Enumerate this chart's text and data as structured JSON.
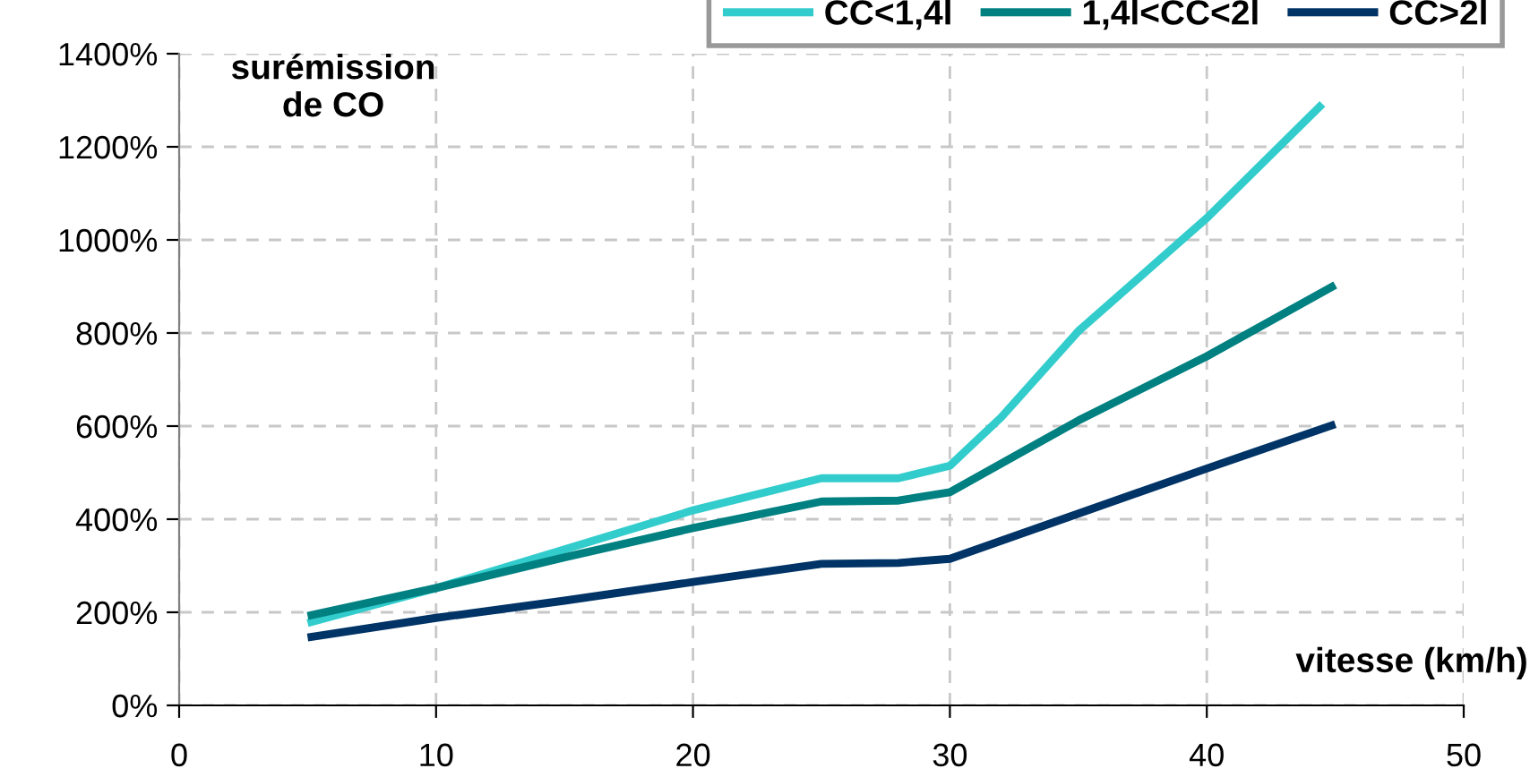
{
  "chart_data": {
    "type": "line",
    "ylabel": "surémission\nde CO",
    "xlabel": "vitesse (km/h)",
    "xlim": [
      0,
      50
    ],
    "xticks": [
      0,
      10,
      20,
      30,
      40,
      50
    ],
    "ylim": [
      0,
      1400
    ],
    "yticks": [
      {
        "value": 0,
        "label": "0%"
      },
      {
        "value": 200,
        "label": "200%"
      },
      {
        "value": 400,
        "label": "400%"
      },
      {
        "value": 600,
        "label": "600%"
      },
      {
        "value": 800,
        "label": "800%"
      },
      {
        "value": 1000,
        "label": "1000%"
      },
      {
        "value": 1200,
        "label": "1200%"
      },
      {
        "value": 1400,
        "label": "1400%"
      }
    ],
    "grid": true,
    "legend": "top right",
    "line_style": "solid",
    "marker": "none",
    "series": [
      {
        "name": "CC<1,4l",
        "color": "#33cccc",
        "x": [
          5,
          10,
          15,
          20,
          25,
          28,
          30,
          32,
          35,
          40,
          44.5
        ],
        "values": [
          177,
          252,
          335,
          419,
          488,
          488,
          515,
          619,
          804,
          1047,
          1292
        ]
      },
      {
        "name": "1,4l<CC<2l",
        "color": "#008080",
        "x": [
          5,
          10,
          15,
          20,
          25,
          28,
          30,
          35,
          40,
          45
        ],
        "values": [
          192,
          252,
          318,
          381,
          438,
          440,
          458,
          612,
          750,
          903
        ]
      },
      {
        "name": "CC>2l",
        "color": "#003366",
        "x": [
          5,
          10,
          15,
          20,
          25,
          28,
          30,
          35,
          40,
          45
        ],
        "values": [
          146,
          188,
          225,
          265,
          304,
          306,
          315,
          412,
          509,
          604
        ]
      }
    ]
  }
}
